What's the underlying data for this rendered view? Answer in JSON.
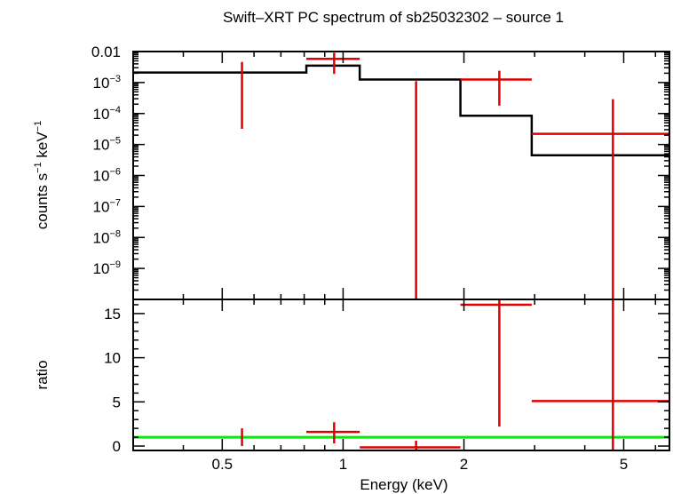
{
  "chart_data": {
    "type": "scatter",
    "title": "Swift–XRT PC spectrum of sb25032302 – source 1",
    "xlabel": "Energy (keV)",
    "x_scale": "log",
    "xlim": [
      0.3,
      6.5
    ],
    "x_ticks": [
      {
        "value": 0.5,
        "label": "0.5"
      },
      {
        "value": 1,
        "label": "1"
      },
      {
        "value": 2,
        "label": "2"
      },
      {
        "value": 5,
        "label": "5"
      }
    ],
    "panels": [
      {
        "name": "spectrum",
        "ylabel_main": "counts s",
        "ylabel_sup1": "−1",
        "ylabel_mid": " keV",
        "ylabel_sup2": "−1",
        "y_scale": "log",
        "ylim": [
          1e-10,
          0.01
        ],
        "y_ticks": [
          {
            "value": 0.01,
            "base": "0.01",
            "exp": ""
          },
          {
            "value": 0.001,
            "base": "10",
            "exp": "−3"
          },
          {
            "value": 0.0001,
            "base": "10",
            "exp": "−4"
          },
          {
            "value": 1e-05,
            "base": "10",
            "exp": "−5"
          },
          {
            "value": 1e-06,
            "base": "10",
            "exp": "−6"
          },
          {
            "value": 1e-07,
            "base": "10",
            "exp": "−7"
          },
          {
            "value": 1e-08,
            "base": "10",
            "exp": "−8"
          },
          {
            "value": 1e-09,
            "base": "10",
            "exp": "−9"
          }
        ],
        "data": [
          {
            "x": 0.56,
            "y_lo": 3.2e-05,
            "y_hi": 0.0046
          },
          {
            "xlo": 0.81,
            "xhi": 1.1,
            "x": 0.95,
            "y": 0.0058,
            "y_lo": 0.0019,
            "y_hi": 0.0092
          },
          {
            "x": 1.52,
            "y_lo": 1e-10,
            "y_hi": 0.0011
          },
          {
            "xlo": 1.96,
            "xhi": 2.95,
            "x": 2.45,
            "y": 0.00125,
            "y_lo": 0.00018,
            "y_hi": 0.0024
          },
          {
            "xlo": 2.95,
            "xhi": 6.5,
            "x": 4.7,
            "y": 2.2e-05,
            "y_lo": 1e-10,
            "y_hi": 0.00029
          }
        ],
        "model": [
          {
            "xlo": 0.3,
            "xhi": 0.81,
            "y": 0.0021
          },
          {
            "xlo": 0.81,
            "xhi": 1.1,
            "y": 0.0035
          },
          {
            "xlo": 1.1,
            "xhi": 1.96,
            "y": 0.00125
          },
          {
            "xlo": 1.96,
            "xhi": 2.95,
            "y": 8.5e-05
          },
          {
            "xlo": 2.95,
            "xhi": 6.5,
            "y": 4.5e-06
          }
        ]
      },
      {
        "name": "ratio",
        "ylabel": "ratio",
        "y_scale": "linear",
        "ylim": [
          -0.5,
          16.6
        ],
        "y_ticks": [
          {
            "value": 0,
            "label": "0"
          },
          {
            "value": 5,
            "label": "5"
          },
          {
            "value": 10,
            "label": "10"
          },
          {
            "value": 15,
            "label": "15"
          }
        ],
        "reference_line": 1,
        "data": [
          {
            "x": 0.56,
            "y_lo": 0,
            "y_hi": 2.0
          },
          {
            "xlo": 0.81,
            "xhi": 1.1,
            "x": 0.95,
            "y": 1.6,
            "y_lo": 0.3,
            "y_hi": 2.7
          },
          {
            "xlo": 1.1,
            "xhi": 1.96,
            "x": 1.52,
            "y": -0.15,
            "y_lo": -0.5,
            "y_hi": 0.6
          },
          {
            "xlo": 1.96,
            "xhi": 2.95,
            "x": 2.45,
            "y": 16.0,
            "y_lo": 2.2,
            "y_hi": 16.6
          },
          {
            "xlo": 2.95,
            "xhi": 6.5,
            "x": 4.7,
            "y": 5.1,
            "y_lo": -0.5,
            "y_hi": 16.6
          }
        ]
      }
    ],
    "colors": {
      "data": "#e00000",
      "model": "#000000",
      "reference": "#00ee00",
      "axes": "#000000"
    }
  }
}
